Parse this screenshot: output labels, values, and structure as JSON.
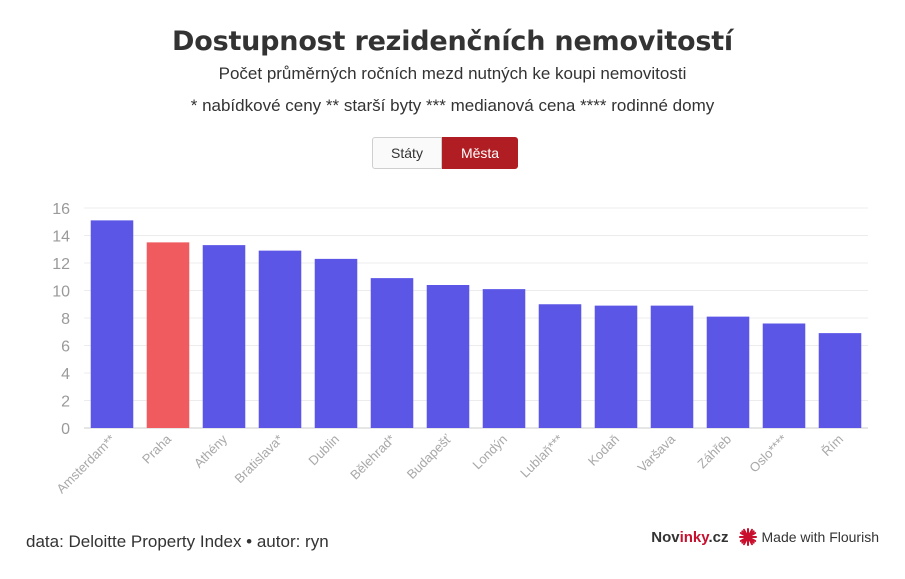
{
  "header": {
    "title": "Dostupnost rezidenčních nemovitostí",
    "subtitle": "Počet průměrných ročních mezd nutných ke koupi nemovitosti",
    "note": "* nabídkové ceny ** starší byty *** medianová cena **** rodinné domy"
  },
  "toggle": {
    "option_states": "Státy",
    "option_cities": "Města",
    "selected": "Města"
  },
  "colors": {
    "bar": "#5b56e6",
    "highlight": "#ef5b5e",
    "toggle_active": "#b01e23"
  },
  "chart_data": {
    "type": "bar",
    "categories": [
      "Amsterdam**",
      "Praha",
      "Athény",
      "Bratislava*",
      "Dublin",
      "Bělehrad*",
      "Budapešť",
      "Londýn",
      "Lublaň***",
      "Kodaň",
      "Varšava",
      "Záhřeb",
      "Oslo****",
      "Řím"
    ],
    "values": [
      15.1,
      13.5,
      13.3,
      12.9,
      12.3,
      10.9,
      10.4,
      10.1,
      9.0,
      8.9,
      8.9,
      8.1,
      7.6,
      6.9
    ],
    "highlight_category": "Praha",
    "ylim": [
      0,
      16
    ],
    "yticks": [
      "0",
      "2",
      "4",
      "6",
      "8",
      "10",
      "12",
      "14",
      "16"
    ],
    "grid": true
  },
  "footer": {
    "source": "data: Deloitte Property Index • autor: ryn",
    "logo_main": "Nov",
    "logo_accent": "inky",
    "logo_suffix": ".cz",
    "flourish_label": "Made with Flourish"
  }
}
